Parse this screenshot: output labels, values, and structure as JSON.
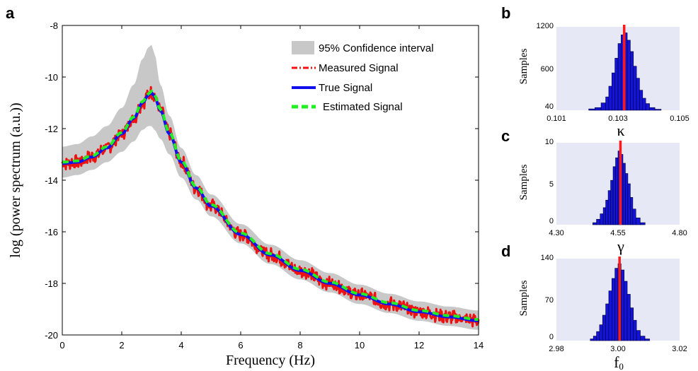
{
  "chart_data": [
    {
      "panel": "a",
      "type": "line",
      "xlabel": "Frequency (Hz)",
      "ylabel": "log (power spectrum (a.u.))",
      "xlim": [
        0,
        14
      ],
      "ylim": [
        -20,
        -8
      ],
      "xticks": [
        "0",
        "2",
        "4",
        "6",
        "8",
        "10",
        "12",
        "14"
      ],
      "yticks": [
        "-8",
        "-10",
        "-12",
        "-14",
        "-16",
        "-18",
        "-20"
      ],
      "grid": false,
      "legend_position": "top-right",
      "legend": [
        "95% Confidence interval",
        "Measured Signal",
        "True Signal",
        "Estimated Signal"
      ],
      "x": [
        0,
        0.5,
        1,
        1.5,
        2,
        2.4,
        2.7,
        2.9,
        3.0,
        3.1,
        3.3,
        3.6,
        4,
        4.5,
        5,
        6,
        7,
        8,
        9,
        10,
        11,
        12,
        13,
        14
      ],
      "series": [
        {
          "name": "True Signal",
          "color": "#1010ee",
          "values": [
            -13.35,
            -13.3,
            -13.1,
            -12.75,
            -12.2,
            -11.6,
            -11.0,
            -10.7,
            -10.6,
            -10.75,
            -11.3,
            -12.2,
            -13.3,
            -14.3,
            -15.0,
            -16.1,
            -16.9,
            -17.5,
            -18.0,
            -18.45,
            -18.8,
            -19.1,
            -19.3,
            -19.45
          ]
        },
        {
          "name": "Estimated Signal",
          "color": "#22ee22",
          "values": [
            -13.3,
            -13.25,
            -13.05,
            -12.7,
            -12.15,
            -11.55,
            -10.95,
            -10.65,
            -10.55,
            -10.7,
            -11.25,
            -12.15,
            -13.25,
            -14.25,
            -14.95,
            -16.05,
            -16.85,
            -17.45,
            -17.95,
            -18.4,
            -18.75,
            -19.05,
            -19.25,
            -19.4
          ]
        },
        {
          "name": "95% Confidence interval",
          "color": "#c8c8c8",
          "lower": [
            -13.9,
            -13.8,
            -13.6,
            -13.3,
            -12.9,
            -12.5,
            -12.05,
            -11.9,
            -11.9,
            -12.05,
            -12.4,
            -13.0,
            -13.9,
            -14.75,
            -15.4,
            -16.45,
            -17.25,
            -17.85,
            -18.35,
            -18.8,
            -19.15,
            -19.45,
            -19.65,
            -19.8
          ],
          "upper": [
            -12.7,
            -12.6,
            -12.3,
            -11.9,
            -11.2,
            -10.3,
            -9.3,
            -8.85,
            -8.75,
            -9.1,
            -10.3,
            -11.5,
            -12.75,
            -13.8,
            -14.55,
            -15.7,
            -16.5,
            -17.1,
            -17.6,
            -18.05,
            -18.4,
            -18.7,
            -18.9,
            -19.05
          ]
        },
        {
          "name": "Measured Signal",
          "color": "#ee1111",
          "style": "dash-dot",
          "note_values": "true signal plus noise"
        }
      ]
    },
    {
      "panel": "b",
      "type": "bar",
      "param": "κ",
      "ylabel": "Samples",
      "xlim": [
        0.101,
        0.105
      ],
      "xticks": [
        "0.101",
        "0.103",
        "0.105"
      ],
      "yticks": [
        "1200",
        "600",
        "40"
      ],
      "ylim": [
        0,
        1250
      ],
      "true_value": 0.1032,
      "bin_centers": [
        0.10215,
        0.10235,
        0.10255,
        0.10265,
        0.10275,
        0.10285,
        0.10295,
        0.10305,
        0.10315,
        0.10325,
        0.10335,
        0.10345,
        0.10355,
        0.10365,
        0.10375,
        0.10385,
        0.10395,
        0.1041,
        0.1043
      ],
      "values": [
        20,
        40,
        110,
        200,
        360,
        560,
        780,
        1000,
        1130,
        1160,
        1050,
        880,
        660,
        480,
        300,
        180,
        100,
        40,
        15
      ]
    },
    {
      "panel": "c",
      "type": "bar",
      "param": "γ",
      "ylabel": "Samples",
      "xlim": [
        4.3,
        4.8
      ],
      "xticks": [
        "4.30",
        "4.55",
        "4.80"
      ],
      "yticks": [
        "10",
        "5",
        "0"
      ],
      "ylim": [
        0,
        12
      ],
      "true_value": 4.56,
      "bin_centers": [
        4.455,
        4.47,
        4.485,
        4.495,
        4.505,
        4.515,
        4.525,
        4.535,
        4.545,
        4.555,
        4.565,
        4.575,
        4.585,
        4.595,
        4.605,
        4.615,
        4.63,
        4.65
      ],
      "values": [
        0.3,
        0.8,
        1.6,
        2.5,
        3.6,
        5.0,
        6.5,
        8.5,
        9.8,
        10.8,
        10.3,
        9.0,
        7.5,
        6.0,
        4.0,
        2.3,
        1.0,
        0.3
      ]
    },
    {
      "panel": "d",
      "type": "bar",
      "param": "f",
      "param_sub": "0",
      "ylabel": "Samples",
      "xlim": [
        2.98,
        3.02
      ],
      "xticks": [
        "2.98",
        "3.00",
        "3.02"
      ],
      "yticks": [
        "140",
        "70",
        "0"
      ],
      "ylim": [
        0,
        145
      ],
      "true_value": 3.0005,
      "bin_centers": [
        2.9915,
        2.9925,
        2.9935,
        2.9945,
        2.9955,
        2.9965,
        2.9975,
        2.9985,
        2.9995,
        3.0005,
        3.0015,
        3.0025,
        3.0035,
        3.0045,
        3.0055,
        3.0065,
        3.008,
        3.0095
      ],
      "values": [
        3,
        8,
        16,
        28,
        45,
        65,
        88,
        110,
        128,
        136,
        125,
        105,
        82,
        58,
        36,
        18,
        8,
        3
      ]
    }
  ],
  "panel_letters": [
    "a",
    "b",
    "c",
    "d"
  ],
  "colors": {
    "true": "#1010ee",
    "estimated": "#22ee22",
    "measured": "#ee1111",
    "ci": "#c8c8c8",
    "hist_bg": "#e6e8f6",
    "hist_bar": "#1414d8",
    "hist_line": "#ff1a1a"
  }
}
